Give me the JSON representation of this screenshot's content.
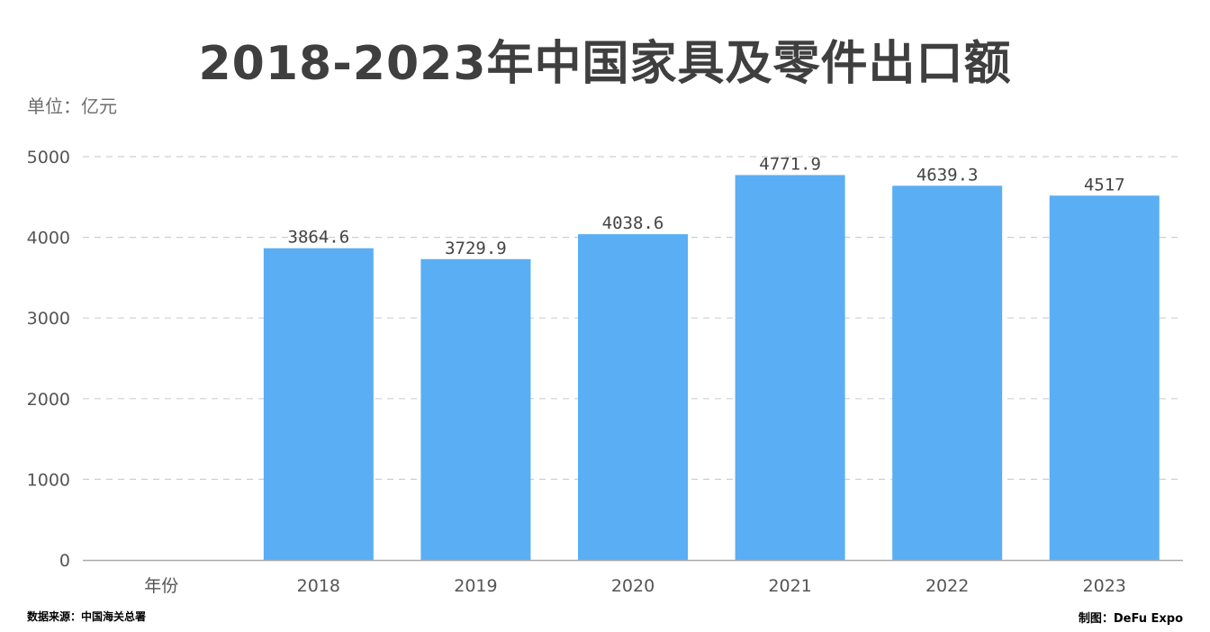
{
  "chart_data": {
    "type": "bar",
    "title": "2018-2023年中国家具及零件出口额",
    "unit_label": "单位：亿元",
    "xlabel": "年份",
    "ylabel": "",
    "categories": [
      "2018",
      "2019",
      "2020",
      "2021",
      "2022",
      "2023"
    ],
    "values": [
      3864.6,
      3729.9,
      4038.6,
      4771.9,
      4639.3,
      4517
    ],
    "data_labels": [
      "3864.6",
      "3729.9",
      "4038.6",
      "4771.9",
      "4639.3",
      "4517"
    ],
    "y_ticks": [
      0,
      1000,
      2000,
      3000,
      4000,
      5000
    ],
    "ylim": [
      0,
      5000
    ],
    "grid": true,
    "bar_color": "#5aaef4"
  },
  "footer": {
    "source": "数据来源：中国海关总署",
    "credit": "制图：DeFu Expo"
  }
}
